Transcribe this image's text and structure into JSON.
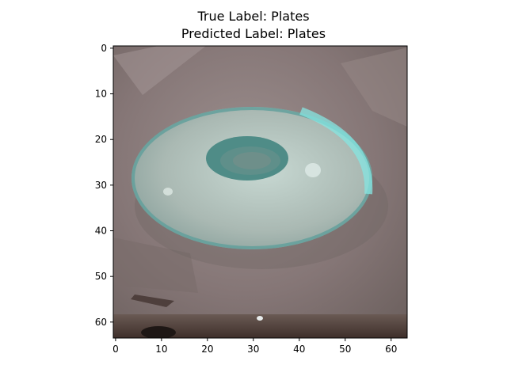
{
  "figure": {
    "title_line1": "True Label: Plates",
    "title_line2": "Predicted Label: Plates"
  },
  "axes": {
    "x_ticks": [
      "0",
      "10",
      "20",
      "30",
      "40",
      "50",
      "60"
    ],
    "y_ticks": [
      "0",
      "10",
      "20",
      "30",
      "40",
      "50",
      "60"
    ],
    "x_tick_values": [
      0,
      10,
      20,
      30,
      40,
      50,
      60
    ],
    "y_tick_values": [
      0,
      10,
      20,
      30,
      40,
      50,
      60
    ],
    "image_extent": [
      -0.5,
      63.5
    ]
  },
  "image": {
    "subject": "glass plate on a stone surface",
    "colors": {
      "background": "#8a7b7a",
      "plate_rim": "#5a9e9a",
      "plate_highlight": "#7fe0dc",
      "plate_center": "#3f7d78",
      "bottom_edge": "#4a3a34"
    }
  }
}
